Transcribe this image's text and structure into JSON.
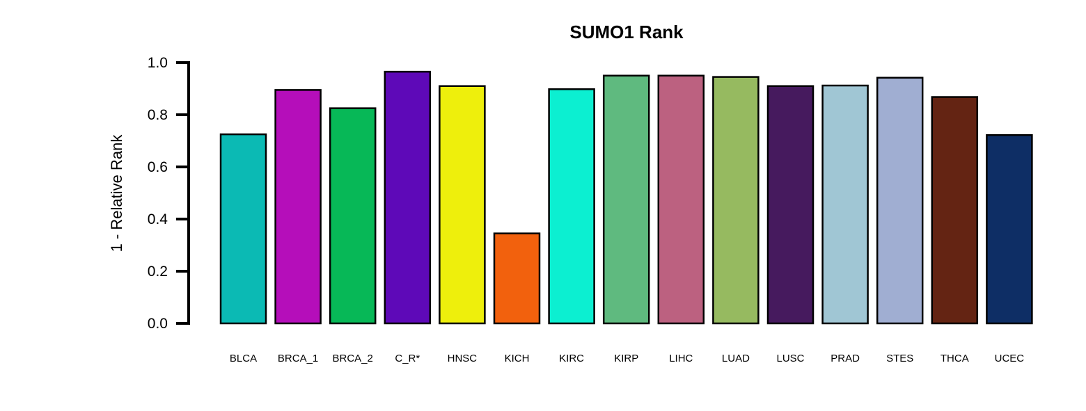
{
  "chart_data": {
    "type": "bar",
    "title": "SUMO1 Rank",
    "xlabel": "",
    "ylabel": "1 - Relative Rank",
    "ylim": [
      0,
      1
    ],
    "yticks": [
      "0.0",
      "0.2",
      "0.4",
      "0.6",
      "0.8",
      "1.0"
    ],
    "grid": false,
    "legend": "none",
    "categories": [
      "BLCA",
      "BRCA_1",
      "BRCA_2",
      "C_R*",
      "HNSC",
      "KICH",
      "KIRC",
      "KIRP",
      "LIHC",
      "LUAD",
      "LUSC",
      "PRAD",
      "STES",
      "THCA",
      "UCEC"
    ],
    "values": [
      0.725,
      0.895,
      0.825,
      0.965,
      0.91,
      0.345,
      0.898,
      0.95,
      0.95,
      0.945,
      0.91,
      0.912,
      0.942,
      0.868,
      0.722
    ],
    "colors": [
      "#0BBAB4",
      "#B50EBA",
      "#07B857",
      "#5E09B8",
      "#EEEF0C",
      "#F2610D",
      "#0CEFD1",
      "#5FBA7F",
      "#BC6180",
      "#96BA60",
      "#461A5E",
      "#A0C6D4",
      "#A0AED2",
      "#642413",
      "#0E2E65"
    ],
    "bar_outline": "#000000"
  }
}
